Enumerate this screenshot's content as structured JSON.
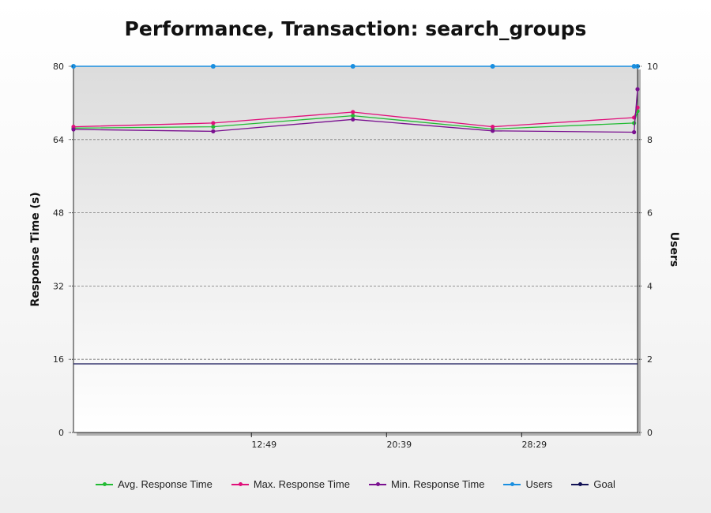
{
  "chart_data": {
    "type": "line",
    "title": "Performance, Transaction: search_groups",
    "ylabel": "Response Time (s)",
    "y2label": "Users",
    "ylim": [
      0,
      80
    ],
    "y2lim": [
      0,
      10
    ],
    "yticks": [
      "0",
      "16",
      "32",
      "48",
      "64",
      "80"
    ],
    "y2ticks": [
      "0",
      "2",
      "4",
      "6",
      "8",
      "10"
    ],
    "xticks": [
      "12:49",
      "20:39",
      "28:29"
    ],
    "xlim_minutes": [
      2.5,
      35.2
    ],
    "grid": true,
    "legend_position": "bottom",
    "x": [
      2.5,
      10.6,
      18.7,
      26.8,
      35.0,
      35.2
    ],
    "series": [
      {
        "name": "Avg. Response Time",
        "color": "#22bb33",
        "axis": "left",
        "values": [
          66.5,
          66.8,
          69.2,
          66.3,
          67.6,
          70.2
        ]
      },
      {
        "name": "Max. Response Time",
        "color": "#e0107a",
        "axis": "left",
        "values": [
          66.8,
          67.6,
          70.0,
          66.8,
          68.8,
          71.0
        ]
      },
      {
        "name": "Min. Response Time",
        "color": "#7a1090",
        "axis": "left",
        "values": [
          66.2,
          65.8,
          68.4,
          65.9,
          65.6,
          75.0
        ]
      },
      {
        "name": "Users",
        "color": "#1a8fe0",
        "axis": "right",
        "values": [
          10,
          10,
          10,
          10,
          10,
          10
        ]
      },
      {
        "name": "Goal",
        "color": "#111155",
        "axis": "left",
        "values": [
          15,
          15,
          15,
          15,
          15,
          15
        ]
      }
    ]
  }
}
